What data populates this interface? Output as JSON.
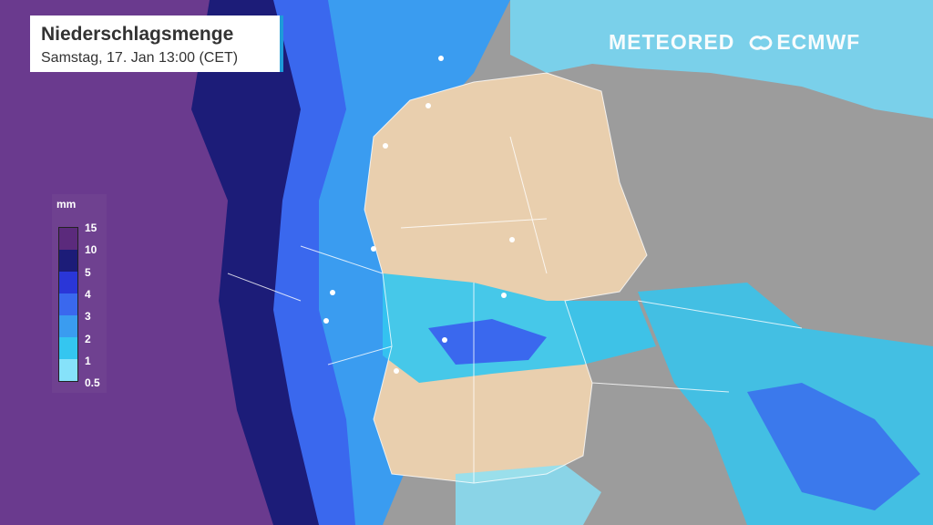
{
  "header": {
    "title": "Niederschlagsmenge",
    "subtitle": "Samstag, 17. Jan 13:00 (CET)"
  },
  "logos": {
    "brand": "METEORED",
    "partner": "ECMWF"
  },
  "legend": {
    "unit": "mm",
    "ticks": [
      "15",
      "10",
      "5",
      "4",
      "3",
      "2",
      "1",
      "0.5"
    ],
    "colors": [
      "#5b2a7c",
      "#1c1c78",
      "#2a36d8",
      "#3a68ee",
      "#3a9cf0",
      "#34c6f0",
      "#86e2fa"
    ]
  },
  "map": {
    "colors": {
      "germany": "#e9cfae",
      "land": "#9c9c9c",
      "sea": "#7ad0ea",
      "heavy": "#6a3a8e",
      "borders": "#ffffff"
    }
  }
}
